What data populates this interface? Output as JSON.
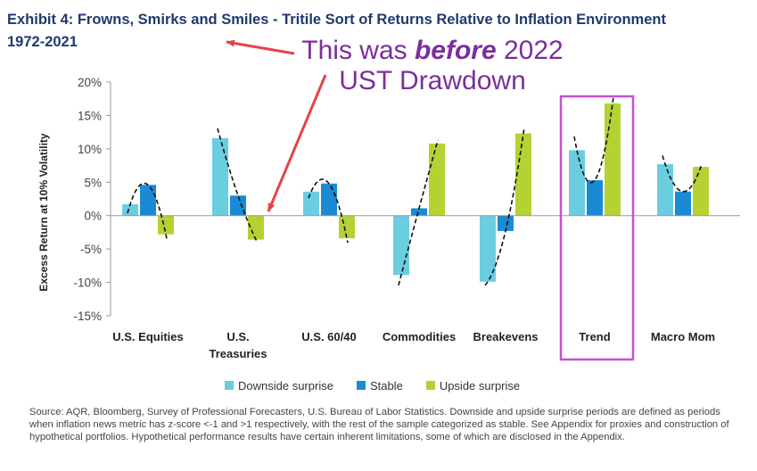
{
  "title": "Exhibit 4: Frowns, Smirks and Smiles - Tritile Sort of Returns Relative to Inflation Environment 1972-2021",
  "annotation": {
    "line1_prefix": "This was ",
    "line1_emphasis": "before",
    "line1_suffix": " 2022",
    "line2": "UST Drawdown"
  },
  "colors": {
    "downside": "#6bcde0",
    "stable": "#1a8ad4",
    "upside": "#b5d233",
    "title": "#1f3a6e",
    "annotation_text": "#7b2e9c",
    "arrow": "#e5424d",
    "highlight_box": "#c64fd6"
  },
  "chart_data": {
    "type": "bar",
    "ylabel": "Excess Return at 10% Volatility",
    "ylim": [
      -15,
      20
    ],
    "yticks": [
      20,
      15,
      10,
      5,
      0,
      -5,
      -10,
      -15
    ],
    "ytick_labels": [
      "20%",
      "15%",
      "10%",
      "5%",
      "0%",
      "-5%",
      "-10%",
      "-15%"
    ],
    "categories": [
      "U.S. Equities",
      "U.S. Treasuries",
      "U.S. 60/40",
      "Commodities",
      "Breakevens",
      "Trend",
      "Macro Mom"
    ],
    "category_lines": [
      [
        "U.S. Equities"
      ],
      [
        "U.S.",
        "Treasuries"
      ],
      [
        "U.S. 60/40"
      ],
      [
        "Commodities"
      ],
      [
        "Breakevens"
      ],
      [
        "Trend"
      ],
      [
        "Macro Mom"
      ]
    ],
    "series": [
      {
        "name": "Downside surprise",
        "values": [
          1.7,
          11.6,
          3.6,
          -8.9,
          -9.9,
          9.8,
          7.7
        ]
      },
      {
        "name": "Stable",
        "values": [
          4.6,
          3.0,
          4.8,
          1.1,
          -2.3,
          5.3,
          3.6
        ]
      },
      {
        "name": "Upside surprise",
        "values": [
          -2.8,
          -3.6,
          -3.4,
          10.8,
          12.3,
          16.8,
          7.3
        ]
      }
    ],
    "highlighted_category": "Trend",
    "grid": false,
    "legend_position": "bottom"
  },
  "source": "Source: AQR, Bloomberg, Survey of Professional Forecasters, U.S. Bureau of Labor Statistics. Downside and upside surprise periods are defined as periods when inflation news metric has z-score <-1 and >1 respectively, with the rest of the sample categorized as stable. See Appendix for proxies and construction of hypothetical portfolios. Hypothetical performance results have certain inherent limitations, some of which are disclosed in the Appendix."
}
